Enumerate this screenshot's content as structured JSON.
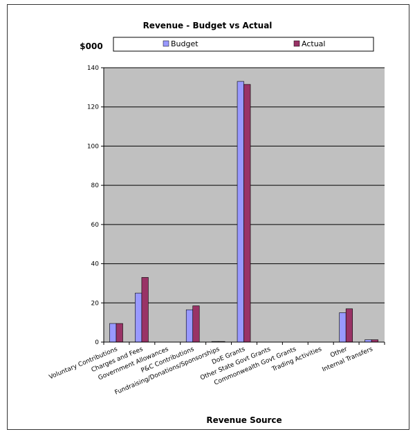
{
  "chart_data": {
    "type": "bar",
    "title": "Revenue - Budget vs Actual",
    "ylabel": "$000",
    "xlabel": "Revenue Source",
    "ylim": [
      0,
      140
    ],
    "yticks": [
      0,
      20,
      40,
      60,
      80,
      100,
      120,
      140
    ],
    "grid": true,
    "legend_position": "top",
    "categories": [
      "Voluntary Contributions",
      "Charges and Fees",
      "Government Allowances",
      "P&C Contributions",
      "Fundraising/Donations/Sponsorships",
      "DoE Grants",
      "Other State Govt Grants",
      "Commonwealth Govt Grants",
      "Trading Activities",
      "Other",
      "Internal Transfers"
    ],
    "series": [
      {
        "name": "Budget",
        "color": "#9999ff",
        "values": [
          9.5,
          25,
          0,
          16.5,
          0.3,
          133,
          0,
          0,
          0,
          15,
          1.2
        ]
      },
      {
        "name": "Actual",
        "color": "#993366",
        "values": [
          9.5,
          33,
          0,
          18.5,
          0.3,
          131.5,
          0,
          0,
          0,
          17,
          1.2
        ]
      }
    ],
    "plot_background": "#c0c0c0"
  }
}
